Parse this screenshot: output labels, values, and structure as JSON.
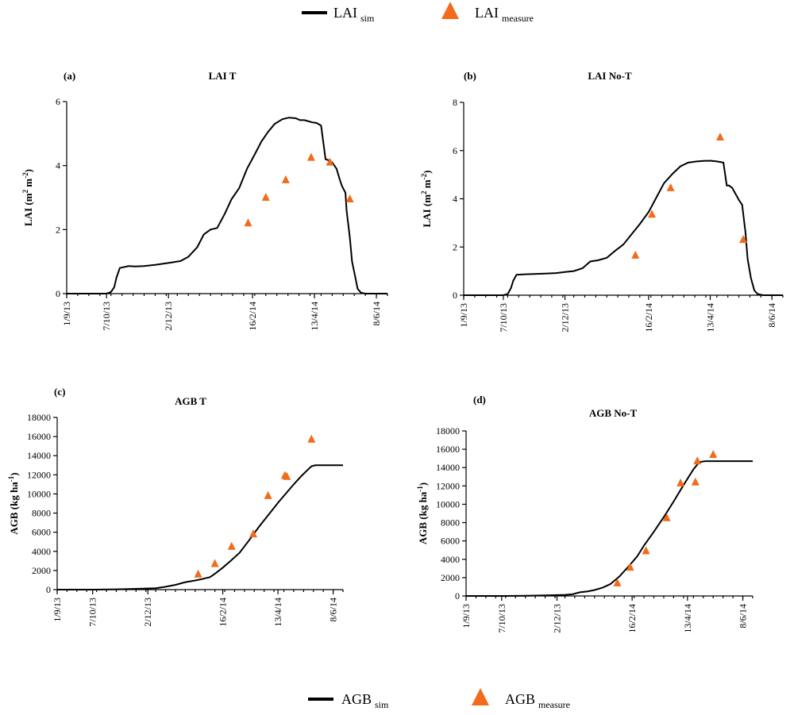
{
  "legend_top": {
    "sim_main": "LAI",
    "sim_sub": "sim",
    "meas_main": "LAI",
    "meas_sub": "measure"
  },
  "legend_bottom": {
    "sim_main": "AGB",
    "sim_sub": "sim",
    "meas_main": "AGB",
    "meas_sub": "measure"
  },
  "colors": {
    "simulated": "#000000",
    "measured": "#f26a1b"
  },
  "chart_data": [
    {
      "id": "a",
      "panel_label": "(a)",
      "type": "line",
      "title": "LAI T",
      "ylabel_main": "LAI (m",
      "ylabel_sup1": "2",
      "ylabel_mid": " m",
      "ylabel_sup2": "-2",
      "ylabel_end": ")",
      "x_ticks": [
        "1/9/13",
        "7/10/13",
        "2/12/13",
        "16/2/14",
        "13/4/14",
        "8/6/14"
      ],
      "x_tick_days": [
        0,
        36,
        92,
        168,
        224,
        280
      ],
      "xlim": [
        0,
        290
      ],
      "ylim": [
        0,
        6
      ],
      "y_ticks": [
        "0",
        "2",
        "4",
        "6"
      ],
      "y_tick_values": [
        0,
        2,
        4,
        6
      ],
      "grid": false,
      "series": [
        {
          "kind": "line",
          "x": [
            0,
            36,
            40,
            43,
            45,
            48,
            56,
            62,
            70,
            80,
            90,
            96,
            103,
            110,
            118,
            124,
            130,
            136,
            143,
            149,
            156,
            163,
            170,
            176,
            182,
            188,
            195,
            201,
            207,
            211,
            215,
            219,
            222,
            226,
            230,
            234,
            238,
            240,
            244,
            247,
            249,
            252,
            253,
            256,
            258,
            261,
            263,
            266,
            270,
            275,
            290
          ],
          "y": [
            0,
            0,
            0.05,
            0.2,
            0.5,
            0.8,
            0.86,
            0.85,
            0.86,
            0.9,
            0.95,
            0.98,
            1.02,
            1.15,
            1.45,
            1.85,
            2.0,
            2.05,
            2.5,
            2.95,
            3.3,
            3.9,
            4.35,
            4.75,
            5.05,
            5.3,
            5.45,
            5.5,
            5.48,
            5.42,
            5.42,
            5.38,
            5.35,
            5.33,
            5.25,
            4.2,
            4.15,
            4.1,
            3.9,
            3.55,
            3.35,
            3.15,
            2.6,
            1.75,
            1.0,
            0.5,
            0.15,
            0.03,
            0,
            0,
            0
          ]
        },
        {
          "kind": "scatter",
          "x": [
            164,
            180,
            198,
            221,
            238,
            256
          ],
          "y": [
            2.2,
            3.0,
            3.55,
            4.25,
            4.1,
            2.95
          ]
        }
      ]
    },
    {
      "id": "b",
      "panel_label": "(b)",
      "type": "line",
      "title": "LAI No-T",
      "ylabel_main": "LAI (m",
      "ylabel_sup1": "2",
      "ylabel_mid": " m",
      "ylabel_sup2": "-2",
      "ylabel_end": ")",
      "x_ticks": [
        "1/9/13",
        "7/10/13",
        "2/12/13",
        "16/2/14",
        "13/4/14",
        "8/6/14"
      ],
      "x_tick_days": [
        0,
        36,
        92,
        168,
        224,
        280
      ],
      "xlim": [
        0,
        290
      ],
      "ylim": [
        0,
        8
      ],
      "y_ticks": [
        "0",
        "2",
        "4",
        "6",
        "8"
      ],
      "y_tick_values": [
        0,
        2,
        4,
        6,
        8
      ],
      "grid": false,
      "series": [
        {
          "kind": "line",
          "x": [
            0,
            36,
            40,
            43,
            45,
            48,
            56,
            64,
            74,
            84,
            92,
            100,
            108,
            115,
            122,
            130,
            137,
            145,
            152,
            160,
            168,
            175,
            182,
            190,
            197,
            204,
            212,
            218,
            224,
            230,
            236,
            239,
            241,
            244,
            247,
            250,
            253,
            256,
            258,
            261,
            264,
            267,
            272,
            290
          ],
          "y": [
            0,
            0,
            0.05,
            0.3,
            0.6,
            0.85,
            0.87,
            0.88,
            0.9,
            0.92,
            0.96,
            1.0,
            1.12,
            1.4,
            1.45,
            1.55,
            1.82,
            2.1,
            2.5,
            2.95,
            3.45,
            4.05,
            4.65,
            5.05,
            5.35,
            5.5,
            5.55,
            5.57,
            5.58,
            5.55,
            5.5,
            4.55,
            4.55,
            4.45,
            4.2,
            3.95,
            3.75,
            2.6,
            1.5,
            0.7,
            0.2,
            0.05,
            0,
            0
          ]
        },
        {
          "kind": "scatter",
          "x": [
            156,
            171,
            188,
            233,
            254
          ],
          "y": [
            1.65,
            3.35,
            4.45,
            6.55,
            2.3
          ]
        }
      ]
    },
    {
      "id": "c",
      "panel_label": "(c)",
      "type": "line",
      "title": "AGB T",
      "ylabel_main": "AGB (kg ha",
      "ylabel_sup1": "-1",
      "ylabel_mid": "",
      "ylabel_sup2": "",
      "ylabel_end": ")",
      "x_ticks": [
        "1/9/13",
        "7/10/13",
        "2/12/13",
        "16/2/14",
        "13/4/14",
        "8/6/14"
      ],
      "x_tick_days": [
        0,
        36,
        92,
        168,
        224,
        280
      ],
      "xlim": [
        0,
        290
      ],
      "ylim": [
        0,
        18000
      ],
      "y_ticks": [
        "0",
        "2000",
        "4000",
        "6000",
        "8000",
        "10000",
        "12000",
        "14000",
        "16000",
        "18000"
      ],
      "y_tick_values": [
        0,
        2000,
        4000,
        6000,
        8000,
        10000,
        12000,
        14000,
        16000,
        18000
      ],
      "grid": false,
      "series": [
        {
          "kind": "line",
          "x": [
            0,
            36,
            60,
            80,
            100,
            110,
            120,
            130,
            140,
            147,
            155,
            160,
            168,
            176,
            185,
            195,
            205,
            215,
            225,
            235,
            240,
            248,
            254,
            258,
            262,
            270,
            280,
            290
          ],
          "y": [
            0,
            0,
            30,
            80,
            150,
            300,
            500,
            780,
            950,
            1100,
            1300,
            1650,
            2300,
            3000,
            3850,
            5200,
            6600,
            7900,
            9200,
            10400,
            11000,
            11900,
            12500,
            12900,
            13000,
            13000,
            13000,
            13000
          ]
        },
        {
          "kind": "scatter",
          "x": [
            143,
            160,
            177,
            199,
            214,
            231,
            233,
            258
          ],
          "y": [
            1600,
            2700,
            4500,
            5800,
            9800,
            11900,
            11800,
            15700
          ]
        }
      ]
    },
    {
      "id": "d",
      "panel_label": "(d)",
      "type": "line",
      "title": "AGB No-T",
      "ylabel_main": "AGB (kg ha",
      "ylabel_sup1": "-1",
      "ylabel_mid": "",
      "ylabel_sup2": "",
      "ylabel_end": ")",
      "x_ticks": [
        "1/9/13",
        "7/10/13",
        "2/12/13",
        "16/2/14",
        "13/4/14",
        "8/6/14"
      ],
      "x_tick_days": [
        0,
        36,
        92,
        168,
        224,
        280
      ],
      "xlim": [
        0,
        290
      ],
      "ylim": [
        0,
        18000
      ],
      "y_ticks": [
        "0",
        "2000",
        "4000",
        "6000",
        "8000",
        "10000",
        "12000",
        "14000",
        "16000",
        "18000"
      ],
      "y_tick_values": [
        0,
        2000,
        4000,
        6000,
        8000,
        10000,
        12000,
        14000,
        16000,
        18000
      ],
      "grid": false,
      "series": [
        {
          "kind": "line",
          "x": [
            0,
            36,
            60,
            80,
            100,
            108,
            115,
            123,
            130,
            138,
            146,
            155,
            165,
            173,
            180,
            190,
            200,
            210,
            220,
            230,
            236,
            242,
            246,
            252,
            260,
            270,
            280,
            290
          ],
          "y": [
            0,
            0,
            30,
            60,
            120,
            200,
            400,
            500,
            650,
            900,
            1300,
            2100,
            3300,
            4300,
            5500,
            7000,
            8600,
            10300,
            12100,
            13800,
            14600,
            14700,
            14700,
            14700,
            14700,
            14700,
            14700,
            14700
          ]
        },
        {
          "kind": "scatter",
          "x": [
            153,
            166,
            182,
            203,
            217,
            232,
            234,
            250
          ],
          "y": [
            1400,
            3100,
            4900,
            8500,
            12300,
            12400,
            14700,
            15400
          ]
        }
      ]
    }
  ]
}
